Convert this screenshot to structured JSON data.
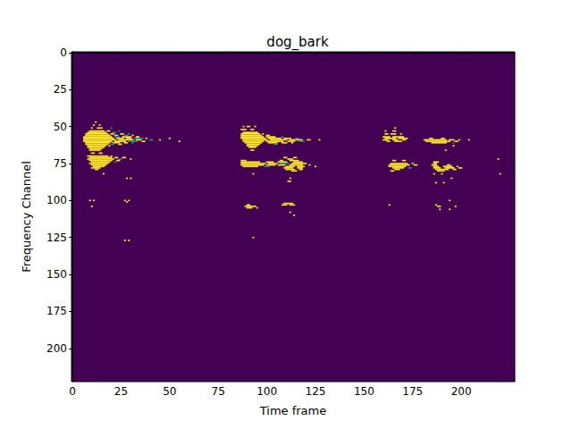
{
  "chart_data": {
    "type": "heatmap",
    "title": "dog_bark",
    "x_label": "Time frame",
    "y_label": "Frequency Channel",
    "xlim": [
      -0.5,
      227.5
    ],
    "ylim": [
      222.5,
      -0.5
    ],
    "xticks": [
      0,
      25,
      50,
      75,
      100,
      125,
      150,
      175,
      200
    ],
    "yticks": [
      0,
      25,
      50,
      75,
      100,
      125,
      150,
      175,
      200
    ],
    "grid": false,
    "color": "viridis",
    "value_range": [
      0,
      1
    ],
    "cell_runs": [
      [
        47,
        12,
        12,
        1
      ],
      [
        49,
        11,
        11,
        1
      ],
      [
        49,
        14,
        14,
        1
      ],
      [
        51,
        10,
        10,
        1
      ],
      [
        51,
        13,
        15,
        1
      ],
      [
        51,
        20,
        20,
        0.5
      ],
      [
        53,
        9,
        16,
        1
      ],
      [
        53,
        18,
        19,
        1
      ],
      [
        53,
        24,
        24,
        0.5
      ],
      [
        54,
        8,
        17,
        1
      ],
      [
        54,
        21,
        22,
        0.5
      ],
      [
        55,
        7,
        18,
        1
      ],
      [
        55,
        20,
        21,
        1
      ],
      [
        55,
        25,
        26,
        1
      ],
      [
        55,
        29,
        29,
        0.5
      ],
      [
        56,
        7,
        19,
        1
      ],
      [
        56,
        22,
        23,
        1
      ],
      [
        56,
        27,
        28,
        0.5
      ],
      [
        56,
        31,
        31,
        1
      ],
      [
        57,
        6,
        20,
        1
      ],
      [
        57,
        22,
        24,
        0.5
      ],
      [
        57,
        26,
        30,
        1
      ],
      [
        57,
        33,
        34,
        1
      ],
      [
        58,
        6,
        21,
        1
      ],
      [
        58,
        23,
        26,
        1
      ],
      [
        58,
        28,
        30,
        1
      ],
      [
        58,
        32,
        36,
        0.5
      ],
      [
        58,
        38,
        38,
        1
      ],
      [
        58,
        50,
        50,
        1
      ],
      [
        59,
        6,
        22,
        1
      ],
      [
        59,
        24,
        31,
        1
      ],
      [
        59,
        33,
        35,
        1
      ],
      [
        59,
        40,
        41,
        0.5
      ],
      [
        59,
        45,
        45,
        1
      ],
      [
        60,
        6,
        20,
        1
      ],
      [
        60,
        22,
        27,
        1
      ],
      [
        60,
        29,
        33,
        0.5
      ],
      [
        60,
        36,
        37,
        1
      ],
      [
        60,
        55,
        55,
        1
      ],
      [
        61,
        7,
        19,
        1
      ],
      [
        61,
        21,
        24,
        1
      ],
      [
        61,
        27,
        28,
        1
      ],
      [
        61,
        31,
        31,
        0.5
      ],
      [
        62,
        7,
        18,
        1
      ],
      [
        62,
        20,
        21,
        0.5
      ],
      [
        62,
        24,
        25,
        1
      ],
      [
        63,
        8,
        17,
        1
      ],
      [
        63,
        19,
        19,
        1
      ],
      [
        64,
        8,
        16,
        1
      ],
      [
        65,
        9,
        15,
        1
      ],
      [
        66,
        9,
        14,
        1
      ],
      [
        68,
        10,
        11,
        1
      ],
      [
        68,
        14,
        15,
        1
      ],
      [
        70,
        8,
        18,
        1
      ],
      [
        70,
        20,
        20,
        1
      ],
      [
        71,
        9,
        20,
        1
      ],
      [
        71,
        22,
        23,
        1
      ],
      [
        71,
        26,
        27,
        1
      ],
      [
        72,
        8,
        21,
        1
      ],
      [
        72,
        24,
        25,
        0.5
      ],
      [
        72,
        30,
        30,
        1
      ],
      [
        73,
        9,
        20,
        1
      ],
      [
        73,
        23,
        24,
        1
      ],
      [
        74,
        10,
        19,
        1
      ],
      [
        74,
        22,
        22,
        0.5
      ],
      [
        75,
        9,
        18,
        1
      ],
      [
        76,
        10,
        17,
        1
      ],
      [
        77,
        11,
        16,
        1
      ],
      [
        78,
        10,
        14,
        1
      ],
      [
        79,
        12,
        13,
        1
      ],
      [
        82,
        16,
        16,
        1
      ],
      [
        85,
        28,
        28,
        1
      ],
      [
        85,
        30,
        30,
        1
      ],
      [
        100,
        9,
        9,
        1
      ],
      [
        100,
        11,
        11,
        1
      ],
      [
        100,
        27,
        27,
        1
      ],
      [
        100,
        29,
        29,
        1
      ],
      [
        101,
        28,
        28,
        1
      ],
      [
        104,
        10,
        10,
        1
      ],
      [
        127,
        27,
        27,
        1
      ],
      [
        127,
        29,
        29,
        1
      ],
      [
        50,
        88,
        88,
        1
      ],
      [
        50,
        90,
        91,
        1
      ],
      [
        50,
        94,
        94,
        1
      ],
      [
        52,
        87,
        89,
        1
      ],
      [
        52,
        92,
        93,
        1
      ],
      [
        54,
        88,
        95,
        1
      ],
      [
        55,
        87,
        96,
        1
      ],
      [
        55,
        98,
        98,
        1
      ],
      [
        56,
        87,
        97,
        1
      ],
      [
        56,
        100,
        101,
        1
      ],
      [
        57,
        87,
        98,
        1
      ],
      [
        57,
        100,
        104,
        1
      ],
      [
        57,
        108,
        108,
        0.5
      ],
      [
        58,
        87,
        99,
        1
      ],
      [
        58,
        101,
        107,
        1
      ],
      [
        58,
        109,
        112,
        1
      ],
      [
        58,
        115,
        116,
        0.5
      ],
      [
        59,
        88,
        100,
        1
      ],
      [
        59,
        102,
        110,
        1
      ],
      [
        59,
        112,
        118,
        1
      ],
      [
        59,
        121,
        122,
        1
      ],
      [
        59,
        127,
        127,
        1
      ],
      [
        60,
        88,
        98,
        1
      ],
      [
        60,
        100,
        108,
        1
      ],
      [
        60,
        111,
        114,
        1
      ],
      [
        60,
        117,
        119,
        0.5
      ],
      [
        61,
        89,
        97,
        1
      ],
      [
        61,
        101,
        105,
        1
      ],
      [
        61,
        108,
        110,
        1
      ],
      [
        61,
        113,
        113,
        1
      ],
      [
        62,
        90,
        96,
        1
      ],
      [
        62,
        104,
        105,
        0.5
      ],
      [
        63,
        90,
        95,
        1
      ],
      [
        64,
        91,
        94,
        1
      ],
      [
        66,
        92,
        93,
        1
      ],
      [
        71,
        109,
        110,
        1
      ],
      [
        71,
        114,
        115,
        1
      ],
      [
        72,
        111,
        113,
        1
      ],
      [
        73,
        87,
        89,
        1
      ],
      [
        73,
        107,
        108,
        1
      ],
      [
        73,
        112,
        116,
        1
      ],
      [
        74,
        87,
        96,
        1
      ],
      [
        74,
        100,
        103,
        1
      ],
      [
        74,
        106,
        110,
        1
      ],
      [
        74,
        114,
        118,
        1
      ],
      [
        75,
        87,
        99,
        1
      ],
      [
        75,
        101,
        105,
        1
      ],
      [
        75,
        107,
        111,
        0.5
      ],
      [
        75,
        113,
        120,
        1
      ],
      [
        76,
        87,
        98,
        1
      ],
      [
        76,
        100,
        104,
        1
      ],
      [
        76,
        106,
        109,
        1
      ],
      [
        76,
        112,
        118,
        1
      ],
      [
        76,
        122,
        122,
        1
      ],
      [
        77,
        88,
        95,
        1
      ],
      [
        77,
        99,
        101,
        0.5
      ],
      [
        77,
        110,
        114,
        1
      ],
      [
        77,
        116,
        119,
        1
      ],
      [
        77,
        125,
        125,
        1
      ],
      [
        78,
        109,
        113,
        1
      ],
      [
        78,
        116,
        118,
        1
      ],
      [
        79,
        110,
        114,
        1
      ],
      [
        79,
        117,
        118,
        1
      ],
      [
        80,
        113,
        115,
        1
      ],
      [
        82,
        93,
        93,
        1
      ],
      [
        85,
        112,
        112,
        1
      ],
      [
        87,
        111,
        112,
        1
      ],
      [
        102,
        109,
        113,
        1
      ],
      [
        103,
        90,
        91,
        1
      ],
      [
        103,
        108,
        110,
        1
      ],
      [
        103,
        112,
        114,
        1
      ],
      [
        104,
        89,
        94,
        1
      ],
      [
        105,
        90,
        92,
        1
      ],
      [
        105,
        95,
        95,
        1
      ],
      [
        108,
        112,
        112,
        1
      ],
      [
        110,
        114,
        114,
        1
      ],
      [
        125,
        93,
        93,
        1
      ],
      [
        51,
        166,
        166,
        1
      ],
      [
        53,
        161,
        161,
        1
      ],
      [
        53,
        165,
        166,
        1
      ],
      [
        55,
        161,
        162,
        1
      ],
      [
        55,
        164,
        166,
        1
      ],
      [
        55,
        169,
        169,
        1
      ],
      [
        57,
        160,
        163,
        1
      ],
      [
        57,
        165,
        170,
        1
      ],
      [
        58,
        161,
        166,
        1
      ],
      [
        58,
        168,
        172,
        1
      ],
      [
        58,
        184,
        185,
        1
      ],
      [
        58,
        190,
        191,
        1
      ],
      [
        59,
        160,
        162,
        1
      ],
      [
        59,
        165,
        167,
        1
      ],
      [
        59,
        170,
        171,
        1
      ],
      [
        59,
        181,
        192,
        1
      ],
      [
        59,
        194,
        196,
        1
      ],
      [
        59,
        199,
        199,
        1
      ],
      [
        59,
        204,
        204,
        1
      ],
      [
        60,
        162,
        163,
        1
      ],
      [
        60,
        166,
        169,
        1
      ],
      [
        60,
        182,
        194,
        1
      ],
      [
        60,
        197,
        198,
        1
      ],
      [
        61,
        185,
        192,
        1
      ],
      [
        61,
        196,
        196,
        0.5
      ],
      [
        63,
        196,
        196,
        1
      ],
      [
        66,
        192,
        192,
        1
      ],
      [
        72,
        219,
        219,
        1
      ],
      [
        73,
        165,
        166,
        1
      ],
      [
        73,
        170,
        171,
        1
      ],
      [
        74,
        186,
        188,
        1
      ],
      [
        75,
        164,
        172,
        1
      ],
      [
        75,
        175,
        175,
        1
      ],
      [
        75,
        186,
        187,
        1
      ],
      [
        76,
        163,
        173,
        1
      ],
      [
        76,
        176,
        177,
        1
      ],
      [
        76,
        185,
        187,
        1
      ],
      [
        76,
        193,
        194,
        1
      ],
      [
        77,
        163,
        171,
        1
      ],
      [
        77,
        186,
        188,
        1
      ],
      [
        77,
        191,
        195,
        1
      ],
      [
        77,
        198,
        198,
        1
      ],
      [
        78,
        165,
        170,
        1
      ],
      [
        78,
        173,
        174,
        0.5
      ],
      [
        78,
        186,
        189,
        1
      ],
      [
        78,
        192,
        196,
        1
      ],
      [
        78,
        199,
        200,
        1
      ],
      [
        79,
        166,
        168,
        1
      ],
      [
        79,
        187,
        193,
        1
      ],
      [
        79,
        196,
        197,
        1
      ],
      [
        80,
        164,
        165,
        1
      ],
      [
        80,
        188,
        191,
        1
      ],
      [
        82,
        186,
        186,
        1
      ],
      [
        82,
        190,
        190,
        1
      ],
      [
        82,
        220,
        220,
        1
      ],
      [
        85,
        195,
        195,
        1
      ],
      [
        88,
        187,
        187,
        1
      ],
      [
        88,
        191,
        191,
        1
      ],
      [
        100,
        194,
        194,
        1
      ],
      [
        103,
        163,
        163,
        1
      ],
      [
        103,
        187,
        187,
        1
      ],
      [
        104,
        188,
        189,
        1
      ],
      [
        104,
        197,
        197,
        1
      ],
      [
        106,
        189,
        189,
        1
      ],
      [
        106,
        194,
        194,
        1
      ]
    ]
  }
}
